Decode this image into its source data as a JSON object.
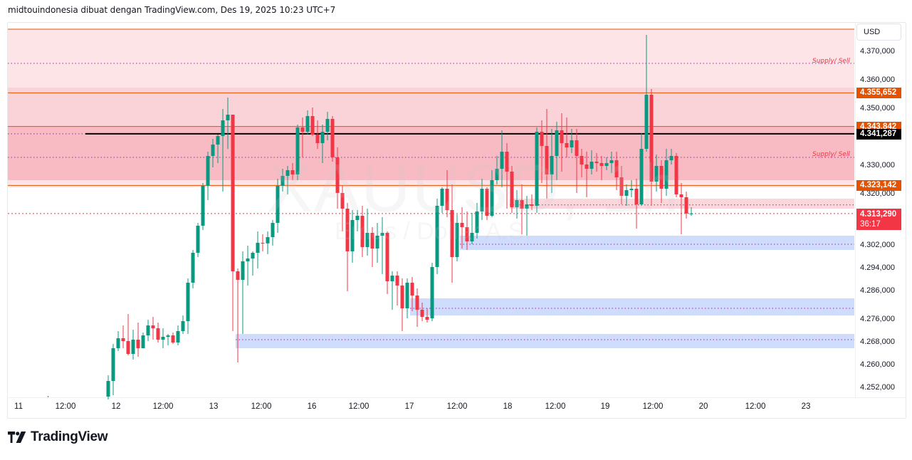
{
  "header": {
    "text": "midtouindonesia dibuat dengan TradingView.com, Des 19, 2025 10:23 UTC+7"
  },
  "watermark": {
    "symbol": "XAUUSD, 1h",
    "description": "Emas / Dollar A.S."
  },
  "price_axis": {
    "currency": "USD",
    "ticks": [
      "4.370,000",
      "4.360,000",
      "4.350,000",
      "4.330,000",
      "4.320,000",
      "4.302,000",
      "4.294,000",
      "4.286,000",
      "4.276,000",
      "4.268,000",
      "4.260,000",
      "4.252,000"
    ]
  },
  "price_tags": [
    {
      "label": "4.355,652",
      "color": "#e65100"
    },
    {
      "label": "4.343,842",
      "color": "#e65100"
    },
    {
      "label": "4.341,287",
      "color": "#000000"
    },
    {
      "label": "4.323,142",
      "color": "#e65100"
    },
    {
      "label": "4.313,290",
      "sub": "36:17",
      "color": "#f23645"
    }
  ],
  "time_axis": {
    "labels": [
      "11",
      "12:00",
      "12",
      "12:00",
      "13",
      "12:00",
      "16",
      "12:00",
      "17",
      "12:00",
      "18",
      "12:00",
      "19",
      "12:00",
      "20",
      "12:00",
      "23"
    ]
  },
  "zone_labels": [
    "Supply/ Sell",
    "Supply/ Sell"
  ],
  "footer": {
    "brand": "TradingView"
  },
  "colors": {
    "up": "#089981",
    "down": "#f23645",
    "supply_zone": "#f8bbc3",
    "supply_zone_light": "#fce4e7",
    "demand_zone": "#d0dcfc",
    "level_line": "#e65100",
    "key_level": "#000000",
    "dotted_mid": "#9c27b0",
    "current_price": "#f23645"
  },
  "chart_data": {
    "type": "candlestick",
    "title": "XAUUSD, 1h — Emas / Dollar A.S.",
    "xlabel": "",
    "ylabel": "USD",
    "ylim": [
      4245000,
      4378000
    ],
    "x_ticks": [
      "11",
      "12:00",
      "12",
      "12:00",
      "13",
      "12:00",
      "16",
      "12:00",
      "17",
      "12:00",
      "18",
      "12:00",
      "19",
      "12:00",
      "20",
      "12:00",
      "23"
    ],
    "y_ticks": [
      4370000,
      4360000,
      4350000,
      4330000,
      4320000,
      4302000,
      4294000,
      4286000,
      4276000,
      4268000,
      4260000,
      4252000
    ],
    "last_price": 4313290,
    "countdown": "36:17",
    "horizontal_levels": [
      {
        "price": 4378000,
        "style": "solid",
        "color": "#e65100",
        "label": ""
      },
      {
        "price": 4355652,
        "style": "solid",
        "color": "#e65100",
        "label": "4.355,652"
      },
      {
        "price": 4343842,
        "style": "solid",
        "color": "#e65100",
        "label": "4.343,842"
      },
      {
        "price": 4341287,
        "style": "solid-thick",
        "color": "#000000",
        "label": "4.341,287"
      },
      {
        "price": 4323142,
        "style": "solid",
        "color": "#e65100",
        "label": "4.323,142"
      }
    ],
    "zones": [
      {
        "type": "supply",
        "top": 4378000,
        "bottom": 4357500,
        "shade": "light",
        "label": "Supply/ Sell",
        "mid": 4366000
      },
      {
        "type": "supply",
        "top": 4357500,
        "bottom": 4325000,
        "shade": "medium",
        "label": "Supply/ Sell",
        "mid": 4333000
      },
      {
        "type": "supply",
        "top": 4325000,
        "bottom": 4322500,
        "shade": "light"
      },
      {
        "type": "supply-small",
        "top": 4318500,
        "bottom": 4315000,
        "start_index": 81,
        "mid": 4316300
      },
      {
        "type": "demand",
        "top": 4305500,
        "bottom": 4300500,
        "start_index": 71,
        "mid": 4302500
      },
      {
        "type": "demand",
        "top": 4283500,
        "bottom": 4277500,
        "start_index": 61,
        "mid": 4280000
      },
      {
        "type": "demand",
        "top": 4271000,
        "bottom": 4266000,
        "start_index": 26,
        "mid": 4269000
      }
    ],
    "candles": [
      [
        4249000,
        4254500,
        4248000,
        4256500
      ],
      [
        4254500,
        4266000,
        4249500,
        4267500
      ],
      [
        4266000,
        4269500,
        4265000,
        4272000
      ],
      [
        4269500,
        4268500,
        4266000,
        4274000
      ],
      [
        4268500,
        4264000,
        4263500,
        4278000
      ],
      [
        4264000,
        4269000,
        4262000,
        4272500
      ],
      [
        4269000,
        4266000,
        4263000,
        4275000
      ],
      [
        4266000,
        4270500,
        4267000,
        4271500
      ],
      [
        4270500,
        4274000,
        4268500,
        4276000
      ],
      [
        4274000,
        4273000,
        4269000,
        4277000
      ],
      [
        4273000,
        4269000,
        4268000,
        4275000
      ],
      [
        4269000,
        4270000,
        4266000,
        4273000
      ],
      [
        4270000,
        4270500,
        4267000,
        4271000
      ],
      [
        4270500,
        4268000,
        4267500,
        4271500
      ],
      [
        4268000,
        4272000,
        4267000,
        4274000
      ],
      [
        4272000,
        4275500,
        4271000,
        4277500
      ],
      [
        4275500,
        4289000,
        4271000,
        4290500
      ],
      [
        4289000,
        4299500,
        4287000,
        4300500
      ],
      [
        4299500,
        4309000,
        4298000,
        4310000
      ],
      [
        4309000,
        4323000,
        4307500,
        4324000
      ],
      [
        4323000,
        4333500,
        4318000,
        4335000
      ],
      [
        4333500,
        4337500,
        4329500,
        4339500
      ],
      [
        4337500,
        4340500,
        4331000,
        4341000
      ],
      [
        4340500,
        4346000,
        4321000,
        4350000
      ],
      [
        4346000,
        4348000,
        4336000,
        4354000
      ],
      [
        4348000,
        4293000,
        4272000,
        4347500
      ],
      [
        4293000,
        4290000,
        4261000,
        4294000
      ],
      [
        4290000,
        4296500,
        4271000,
        4300000
      ],
      [
        4296500,
        4297500,
        4288000,
        4302000
      ],
      [
        4297500,
        4299500,
        4291500,
        4300000
      ],
      [
        4299500,
        4303000,
        4294000,
        4307000
      ],
      [
        4303000,
        4302800,
        4300000,
        4306000
      ],
      [
        4302800,
        4305000,
        4299000,
        4307000
      ],
      [
        4305000,
        4310000,
        4302000,
        4311000
      ],
      [
        4310000,
        4323000,
        4306500,
        4325500
      ],
      [
        4323000,
        4326500,
        4321000,
        4329000
      ],
      [
        4326500,
        4328500,
        4320000,
        4330000
      ],
      [
        4328500,
        4327000,
        4325000,
        4331000
      ],
      [
        4327000,
        4343500,
        4325000,
        4344500
      ],
      [
        4343500,
        4342000,
        4333000,
        4347000
      ],
      [
        4342000,
        4347500,
        4341000,
        4349500
      ],
      [
        4347500,
        4341000,
        4340500,
        4350500
      ],
      [
        4341000,
        4338000,
        4336000,
        4346000
      ],
      [
        4338000,
        4342000,
        4331000,
        4344500
      ],
      [
        4342000,
        4346500,
        4339000,
        4349000
      ],
      [
        4346500,
        4333000,
        4331500,
        4347500
      ],
      [
        4333000,
        4320500,
        4315000,
        4336500
      ],
      [
        4320500,
        4315000,
        4307000,
        4323000
      ],
      [
        4315000,
        4300000,
        4286000,
        4317000
      ],
      [
        4300000,
        4311000,
        4296000,
        4314500
      ],
      [
        4311000,
        4312500,
        4307000,
        4314500
      ],
      [
        4312500,
        4301500,
        4298000,
        4316000
      ],
      [
        4301500,
        4306500,
        4298500,
        4315000
      ],
      [
        4306500,
        4301000,
        4294500,
        4308500
      ],
      [
        4301000,
        4305500,
        4296000,
        4310000
      ],
      [
        4305500,
        4306500,
        4292000,
        4312000
      ],
      [
        4306500,
        4289500,
        4285000,
        4307000
      ],
      [
        4289500,
        4291500,
        4279500,
        4293000
      ],
      [
        4291500,
        4288000,
        4281000,
        4293000
      ],
      [
        4288000,
        4280000,
        4272000,
        4290500
      ],
      [
        4280000,
        4289000,
        4276500,
        4290500
      ],
      [
        4289000,
        4284500,
        4279000,
        4291000
      ],
      [
        4284500,
        4279500,
        4273500,
        4287000
      ],
      [
        4279500,
        4277000,
        4275500,
        4282000
      ],
      [
        4277000,
        4276000,
        4275000,
        4280000
      ],
      [
        4276500,
        4294500,
        4275500,
        4296000
      ],
      [
        4294500,
        4316000,
        4292000,
        4318500
      ],
      [
        4316000,
        4322000,
        4313500,
        4322500
      ],
      [
        4322000,
        4314500,
        4312000,
        4328500
      ],
      [
        4314500,
        4298000,
        4289000,
        4323500
      ],
      [
        4298000,
        4310000,
        4296500,
        4313000
      ],
      [
        4310000,
        4308500,
        4301000,
        4315500
      ],
      [
        4308500,
        4303500,
        4300500,
        4314000
      ],
      [
        4303500,
        4306500,
        4302500,
        4313500
      ],
      [
        4306500,
        4314000,
        4304500,
        4317000
      ],
      [
        4314000,
        4322000,
        4311000,
        4325500
      ],
      [
        4322000,
        4312500,
        4311000,
        4322500
      ],
      [
        4312500,
        4325000,
        4312000,
        4328500
      ],
      [
        4325000,
        4329000,
        4323500,
        4333500
      ],
      [
        4329000,
        4335000,
        4322500,
        4342500
      ],
      [
        4335000,
        4328000,
        4315000,
        4338000
      ],
      [
        4328000,
        4315500,
        4313500,
        4330000
      ],
      [
        4315500,
        4318000,
        4311500,
        4321500
      ],
      [
        4318000,
        4315000,
        4306000,
        4323500
      ],
      [
        4315000,
        4316500,
        4305500,
        4319500
      ],
      [
        4316500,
        4316000,
        4314500,
        4320000
      ],
      [
        4316000,
        4342000,
        4313500,
        4343500
      ],
      [
        4342000,
        4337000,
        4324000,
        4346000
      ],
      [
        4337000,
        4327000,
        4318500,
        4350000
      ],
      [
        4327000,
        4333500,
        4320500,
        4343000
      ],
      [
        4333500,
        4342500,
        4325000,
        4345500
      ],
      [
        4342500,
        4338000,
        4328000,
        4348500
      ],
      [
        4338000,
        4336500,
        4333000,
        4347000
      ],
      [
        4336500,
        4339000,
        4334500,
        4343000
      ],
      [
        4339000,
        4333500,
        4320500,
        4343000
      ],
      [
        4333500,
        4330500,
        4326000,
        4336000
      ],
      [
        4330500,
        4329000,
        4319000,
        4335000
      ],
      [
        4329000,
        4331500,
        4327000,
        4335500
      ],
      [
        4331500,
        4331000,
        4328000,
        4334500
      ],
      [
        4331000,
        4330000,
        4325000,
        4333500
      ],
      [
        4330000,
        4331000,
        4328500,
        4333000
      ],
      [
        4331000,
        4332000,
        4327500,
        4335000
      ],
      [
        4332000,
        4326000,
        4321500,
        4335000
      ],
      [
        4326000,
        4319500,
        4316500,
        4330000
      ],
      [
        4319500,
        4321500,
        4316000,
        4323500
      ],
      [
        4321500,
        4322000,
        4319000,
        4325000
      ],
      [
        4322000,
        4316500,
        4308000,
        4325500
      ],
      [
        4316500,
        4336000,
        4316000,
        4341500
      ],
      [
        4336000,
        4355000,
        4335000,
        4376000
      ],
      [
        4355000,
        4324500,
        4316000,
        4357000
      ],
      [
        4324500,
        4330000,
        4321000,
        4334000
      ],
      [
        4330000,
        4322000,
        4317000,
        4332000
      ],
      [
        4322000,
        4332000,
        4319500,
        4336000
      ],
      [
        4332000,
        4333500,
        4330500,
        4336000
      ],
      [
        4333500,
        4320000,
        4319000,
        4334500
      ],
      [
        4320000,
        4319000,
        4306000,
        4324000
      ],
      [
        4319000,
        4313290,
        4311500,
        4321000
      ],
      [
        4313290,
        4313290,
        4312500,
        4315500
      ]
    ]
  }
}
